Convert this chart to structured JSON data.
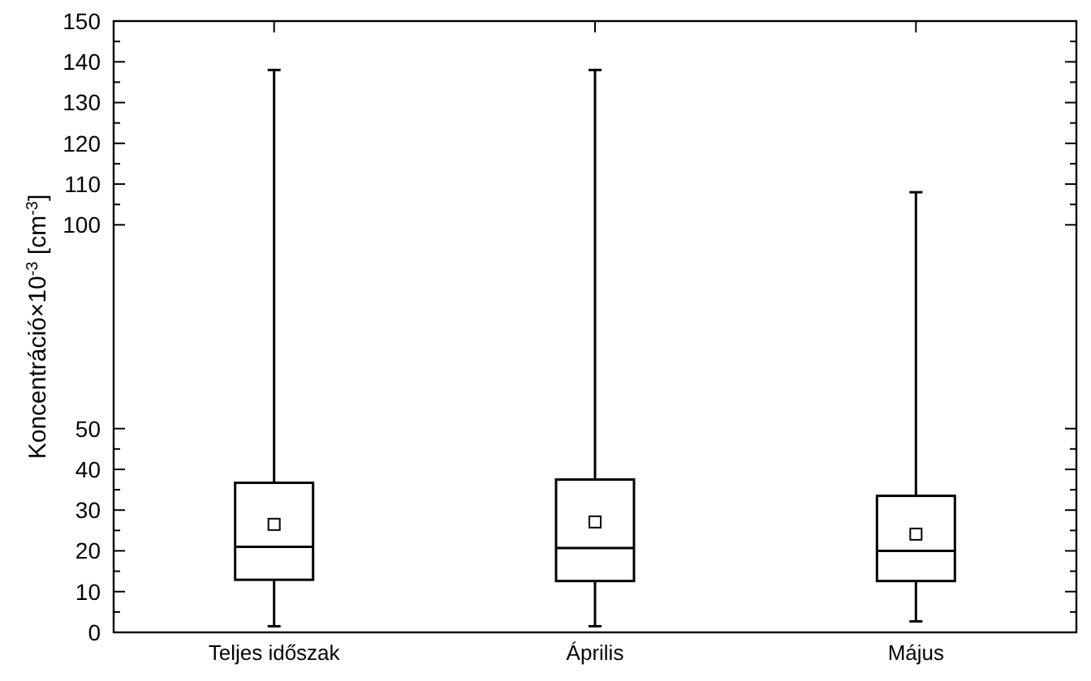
{
  "chart_data": {
    "type": "box",
    "categories": [
      "Teljes időszak",
      "Április",
      "Május"
    ],
    "ylabel": "Koncentráció×10$^{-3}$ [cm$^{-3}$]",
    "ylim": [
      0,
      150
    ],
    "yticks": [
      0,
      10,
      20,
      30,
      40,
      50,
      100,
      110,
      120,
      130,
      140,
      150
    ],
    "grid": false,
    "boxes": [
      {
        "low": 1.5,
        "q1": 12.9,
        "median": 21.0,
        "q3": 36.7,
        "high": 138,
        "mean": 26.5
      },
      {
        "low": 1.5,
        "q1": 12.6,
        "median": 20.7,
        "q3": 37.5,
        "high": 138,
        "mean": 27.1
      },
      {
        "low": 2.7,
        "q1": 12.6,
        "median": 20.0,
        "q3": 33.5,
        "high": 108,
        "mean": 24.1
      }
    ]
  }
}
